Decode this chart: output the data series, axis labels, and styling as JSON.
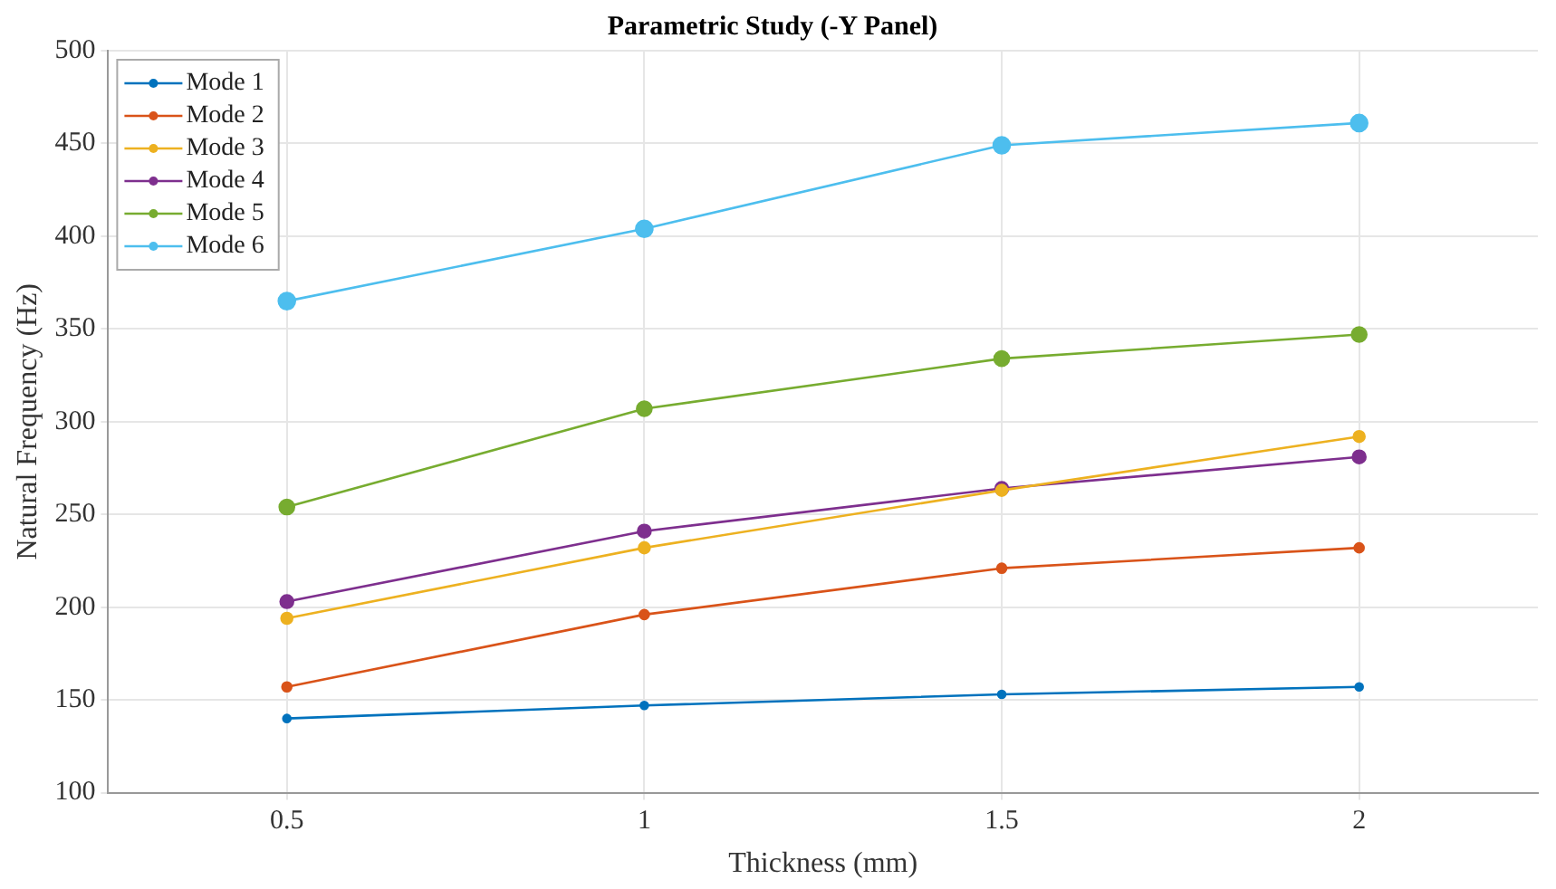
{
  "chart_data": {
    "type": "line",
    "title": "Parametric Study (-Y Panel)",
    "xlabel": "Thickness (mm)",
    "ylabel": "Natural Frequency (Hz)",
    "x": [
      0.5,
      1,
      1.5,
      2
    ],
    "series": [
      {
        "name": "Mode 1",
        "color": "#0072bd",
        "values": [
          140,
          147,
          153,
          157
        ]
      },
      {
        "name": "Mode 2",
        "color": "#d95319",
        "values": [
          157,
          196,
          221,
          232
        ]
      },
      {
        "name": "Mode 3",
        "color": "#edb120",
        "values": [
          194,
          232,
          263,
          292
        ]
      },
      {
        "name": "Mode 4",
        "color": "#7e2f8e",
        "values": [
          203,
          241,
          264,
          281
        ]
      },
      {
        "name": "Mode 5",
        "color": "#77ac30",
        "values": [
          254,
          307,
          334,
          347
        ]
      },
      {
        "name": "Mode 6",
        "color": "#4dbeee",
        "values": [
          365,
          404,
          449,
          461
        ]
      }
    ],
    "xlim": [
      0.25,
      2.25
    ],
    "xticks": [
      0.5,
      1,
      {
        "value": 1.5,
        "label": "1.5"
      },
      2
    ],
    "ylim": [
      100,
      500
    ],
    "yticks": [
      100,
      150,
      200,
      250,
      300,
      350,
      400,
      450,
      500
    ],
    "grid": true,
    "legend": "top left",
    "marker": "circle",
    "line_style": "solid"
  }
}
